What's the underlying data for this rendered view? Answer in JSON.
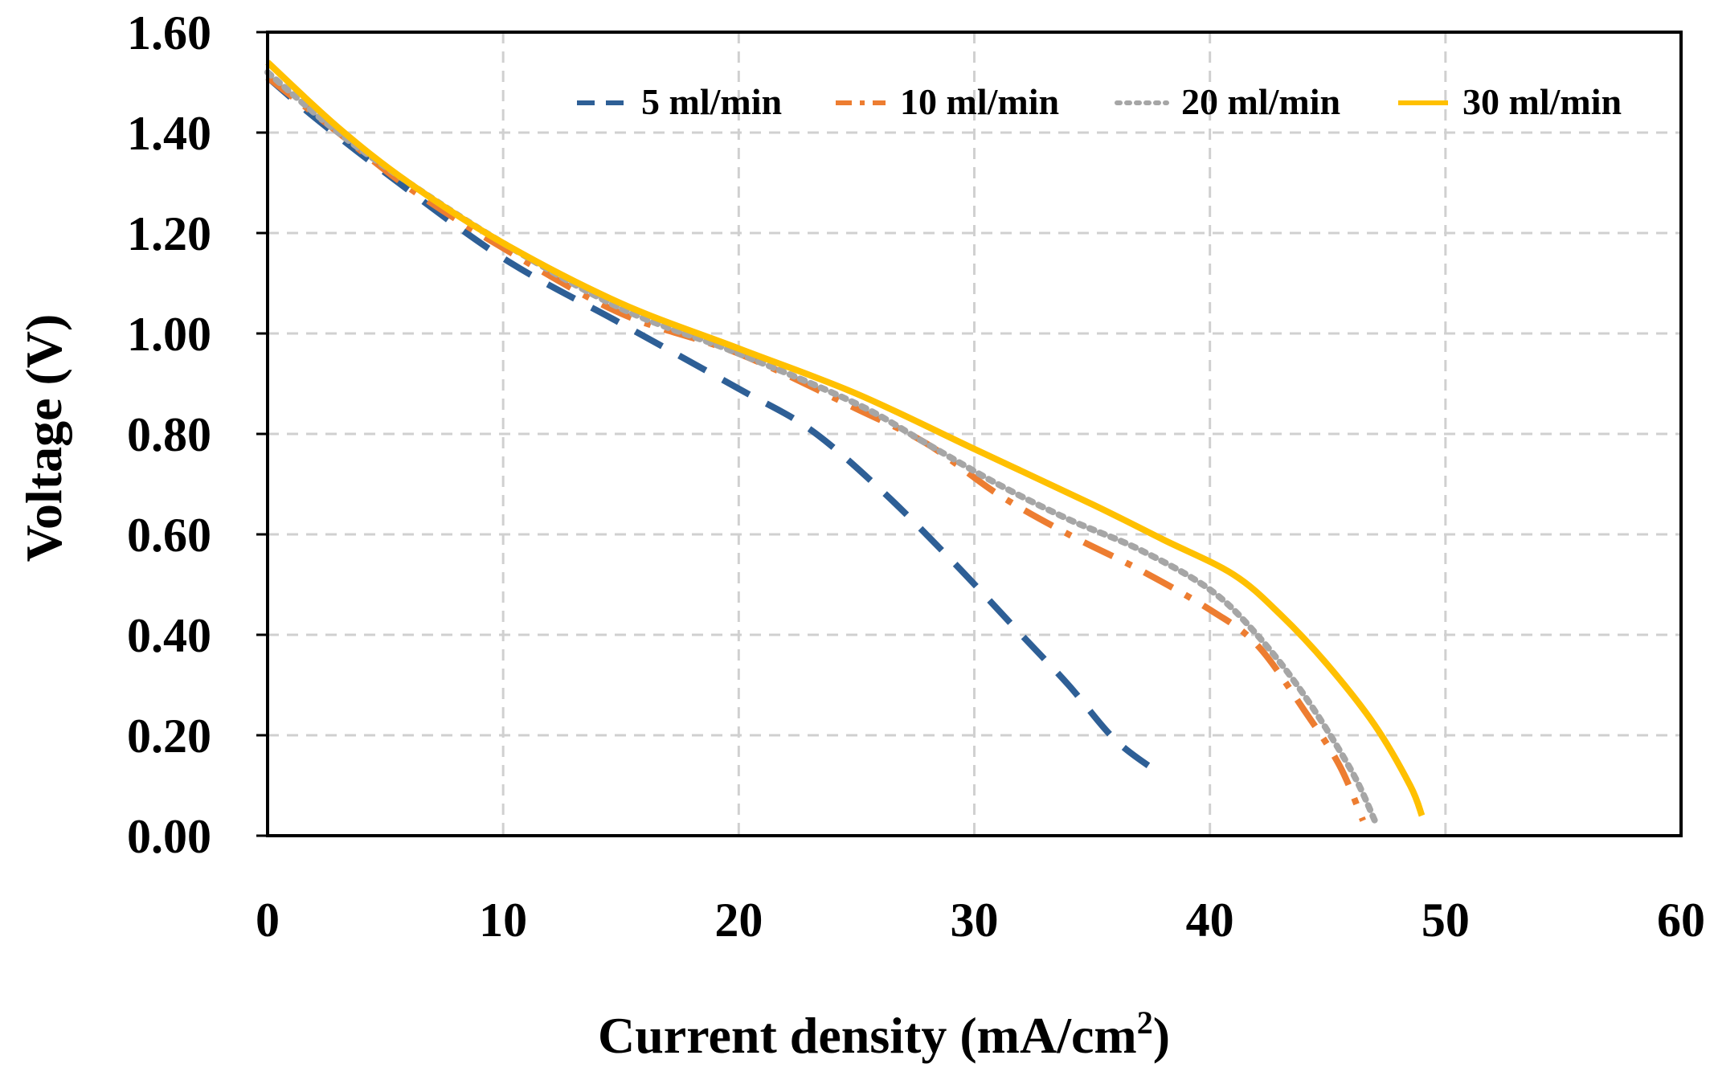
{
  "chart_data": {
    "type": "line",
    "title": "",
    "xlabel": "Current density (mA/cm",
    "xlabel_superscript": "2",
    "xlabel_suffix": ")",
    "ylabel": "Voltage (V)",
    "xlim": [
      0,
      60
    ],
    "ylim": [
      0,
      1.6
    ],
    "xticks": [
      0,
      10,
      20,
      30,
      40,
      50,
      60
    ],
    "xtick_labels": [
      "0",
      "10",
      "20",
      "30",
      "40",
      "50",
      "60"
    ],
    "yticks": [
      0,
      0.2,
      0.4,
      0.6,
      0.8,
      1.0,
      1.2,
      1.4,
      1.6
    ],
    "ytick_labels": [
      "0.00",
      "0.20",
      "0.40",
      "0.60",
      "0.80",
      "1.00",
      "1.20",
      "1.40",
      "1.60"
    ],
    "grid": true,
    "legend_position": "top-right",
    "series": [
      {
        "name": "5 ml/min",
        "color": "#2e5f96",
        "style": "dashed",
        "x": [
          0,
          2,
          5,
          10,
          15,
          20,
          23,
          26,
          29,
          32,
          34,
          36,
          38
        ],
        "y": [
          1.51,
          1.43,
          1.32,
          1.15,
          1.02,
          0.89,
          0.81,
          0.69,
          0.55,
          0.4,
          0.3,
          0.19,
          0.12
        ]
      },
      {
        "name": "10 ml/min",
        "color": "#ed7d31",
        "style": "dashdot",
        "x": [
          0,
          3,
          6,
          10,
          15,
          20,
          25,
          28,
          31,
          34,
          37,
          40,
          42,
          44,
          45.5,
          46.5
        ],
        "y": [
          1.51,
          1.4,
          1.29,
          1.17,
          1.04,
          0.96,
          0.85,
          0.78,
          0.68,
          0.6,
          0.53,
          0.45,
          0.38,
          0.25,
          0.14,
          0.03
        ]
      },
      {
        "name": "20 ml/min",
        "color": "#a6a6a6",
        "style": "dotted",
        "x": [
          0,
          3,
          6,
          10,
          15,
          20,
          25,
          28,
          31,
          34,
          37,
          40,
          42,
          44,
          46,
          47
        ],
        "y": [
          1.52,
          1.4,
          1.3,
          1.18,
          1.05,
          0.96,
          0.86,
          0.78,
          0.7,
          0.63,
          0.57,
          0.49,
          0.4,
          0.28,
          0.13,
          0.03
        ]
      },
      {
        "name": "30 ml/min",
        "color": "#ffc000",
        "style": "solid",
        "x": [
          0,
          3,
          6,
          10,
          15,
          20,
          25,
          30,
          35,
          38,
          41,
          43,
          45,
          47,
          48.5,
          49
        ],
        "y": [
          1.54,
          1.41,
          1.3,
          1.18,
          1.06,
          0.97,
          0.88,
          0.77,
          0.66,
          0.59,
          0.52,
          0.44,
          0.34,
          0.22,
          0.1,
          0.04
        ]
      }
    ]
  }
}
